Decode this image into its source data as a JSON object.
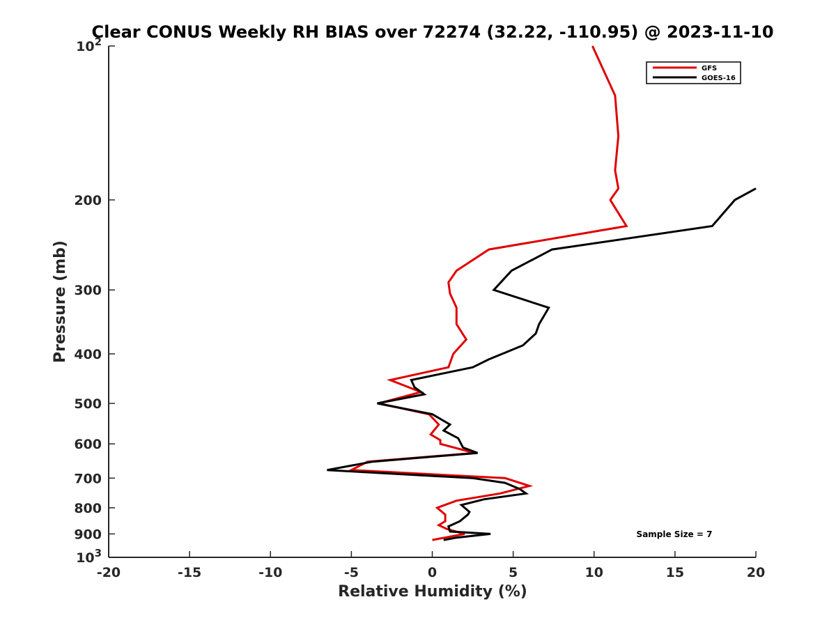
{
  "chart_data": {
    "type": "line",
    "title": "Clear CONUS Weekly RH BIAS over 72274 (32.22, -110.95) @ 2023-11-10",
    "xlabel": "Relative Humidity (%)",
    "ylabel": "Pressure (mb)",
    "xlim": [
      -20,
      20
    ],
    "ylim": [
      100,
      1000
    ],
    "y_scale": "log",
    "y_reversed": true,
    "grid": false,
    "legend_position": "top-right",
    "annotation": "Sample Size = 7",
    "x_ticks": [
      "-20",
      "-15",
      "-10",
      "-5",
      "0",
      "5",
      "10",
      "15",
      "20"
    ],
    "y_ticks": [
      {
        "value": 100,
        "base": "10",
        "exp": "2"
      },
      {
        "value": 200,
        "label": "200"
      },
      {
        "value": 300,
        "label": "300"
      },
      {
        "value": 400,
        "label": "400"
      },
      {
        "value": 500,
        "label": "500"
      },
      {
        "value": 600,
        "label": "600"
      },
      {
        "value": 700,
        "label": "700"
      },
      {
        "value": 800,
        "label": "800"
      },
      {
        "value": 900,
        "label": "900"
      },
      {
        "value": 1000,
        "base": "10",
        "exp": "3"
      }
    ],
    "series": [
      {
        "name": "GFS",
        "color": "#e00000",
        "points": [
          {
            "x": 9.9,
            "y": 100
          },
          {
            "x": 11.3,
            "y": 125
          },
          {
            "x": 11.5,
            "y": 150
          },
          {
            "x": 11.3,
            "y": 175
          },
          {
            "x": 11.5,
            "y": 190
          },
          {
            "x": 11.0,
            "y": 200
          },
          {
            "x": 12.0,
            "y": 225
          },
          {
            "x": 3.5,
            "y": 250
          },
          {
            "x": 1.5,
            "y": 275
          },
          {
            "x": 1.0,
            "y": 290
          },
          {
            "x": 1.1,
            "y": 305
          },
          {
            "x": 1.5,
            "y": 325
          },
          {
            "x": 1.5,
            "y": 350
          },
          {
            "x": 2.1,
            "y": 375
          },
          {
            "x": 1.3,
            "y": 400
          },
          {
            "x": 1.0,
            "y": 425
          },
          {
            "x": -2.6,
            "y": 450
          },
          {
            "x": -0.7,
            "y": 475
          },
          {
            "x": -3.3,
            "y": 500
          },
          {
            "x": -0.2,
            "y": 525
          },
          {
            "x": 0.4,
            "y": 550
          },
          {
            "x": -0.1,
            "y": 575
          },
          {
            "x": 0.5,
            "y": 590
          },
          {
            "x": 0.5,
            "y": 600
          },
          {
            "x": 2.6,
            "y": 625
          },
          {
            "x": -4.0,
            "y": 650
          },
          {
            "x": -5.0,
            "y": 675
          },
          {
            "x": 4.5,
            "y": 700
          },
          {
            "x": 6.0,
            "y": 725
          },
          {
            "x": 4.2,
            "y": 750
          },
          {
            "x": 1.5,
            "y": 775
          },
          {
            "x": 0.3,
            "y": 800
          },
          {
            "x": 0.8,
            "y": 825
          },
          {
            "x": 0.8,
            "y": 850
          },
          {
            "x": 0.4,
            "y": 865
          },
          {
            "x": 0.9,
            "y": 880
          },
          {
            "x": 2.0,
            "y": 900
          },
          {
            "x": 0.0,
            "y": 925
          }
        ]
      },
      {
        "name": "GOES-16",
        "color": "#000000",
        "points": [
          {
            "x": 20.0,
            "y": 190
          },
          {
            "x": 18.7,
            "y": 200
          },
          {
            "x": 17.3,
            "y": 225
          },
          {
            "x": 7.4,
            "y": 250
          },
          {
            "x": 4.9,
            "y": 275
          },
          {
            "x": 3.8,
            "y": 300
          },
          {
            "x": 7.2,
            "y": 325
          },
          {
            "x": 6.6,
            "y": 350
          },
          {
            "x": 6.4,
            "y": 365
          },
          {
            "x": 5.6,
            "y": 385
          },
          {
            "x": 3.5,
            "y": 410
          },
          {
            "x": 2.5,
            "y": 425
          },
          {
            "x": -1.3,
            "y": 450
          },
          {
            "x": -1.1,
            "y": 465
          },
          {
            "x": -0.5,
            "y": 480
          },
          {
            "x": -3.4,
            "y": 500
          },
          {
            "x": 0.0,
            "y": 525
          },
          {
            "x": 1.1,
            "y": 550
          },
          {
            "x": 0.7,
            "y": 565
          },
          {
            "x": 1.6,
            "y": 585
          },
          {
            "x": 1.9,
            "y": 610
          },
          {
            "x": 2.8,
            "y": 625
          },
          {
            "x": -3.7,
            "y": 650
          },
          {
            "x": -6.5,
            "y": 675
          },
          {
            "x": 2.5,
            "y": 700
          },
          {
            "x": 4.5,
            "y": 715
          },
          {
            "x": 5.4,
            "y": 735
          },
          {
            "x": 5.8,
            "y": 750
          },
          {
            "x": 3.2,
            "y": 770
          },
          {
            "x": 1.8,
            "y": 790
          },
          {
            "x": 2.3,
            "y": 815
          },
          {
            "x": 2.2,
            "y": 825
          },
          {
            "x": 1.7,
            "y": 850
          },
          {
            "x": 1.0,
            "y": 870
          },
          {
            "x": 1.1,
            "y": 890
          },
          {
            "x": 3.6,
            "y": 900
          },
          {
            "x": 1.5,
            "y": 915
          },
          {
            "x": 0.7,
            "y": 925
          }
        ]
      }
    ]
  }
}
